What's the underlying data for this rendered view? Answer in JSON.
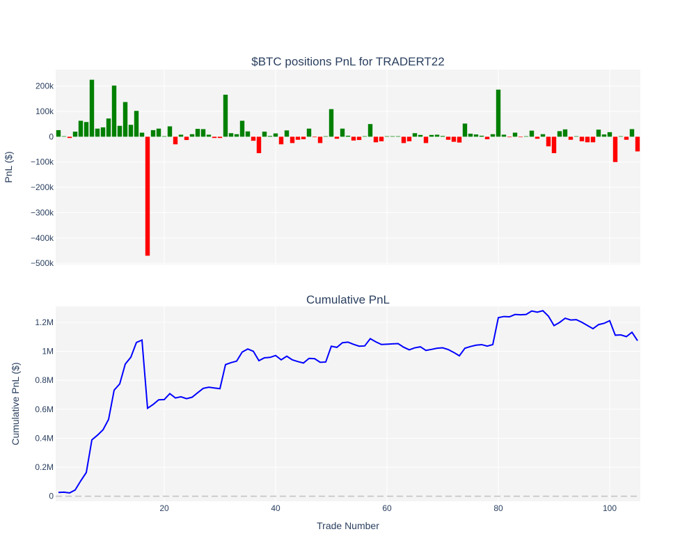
{
  "chart_data": [
    {
      "type": "bar",
      "title": "$BTC positions PnL for TRADERT22",
      "xlabel": "",
      "ylabel": "PnL ($)",
      "ylim": [
        -505000,
        265000
      ],
      "xlim": [
        0.5,
        105.5
      ],
      "y_ticks": [
        200000,
        100000,
        0,
        -100000,
        -200000,
        -300000,
        -400000,
        -500000
      ],
      "y_tick_labels": [
        "200k",
        "100k",
        "0",
        "−100k",
        "−200k",
        "−300k",
        "−400k",
        "−500k"
      ],
      "positive_color": "#008000",
      "negative_color": "#ff0000",
      "grid": true,
      "x": [
        1,
        2,
        3,
        4,
        5,
        6,
        7,
        8,
        9,
        10,
        11,
        12,
        13,
        14,
        15,
        16,
        17,
        18,
        19,
        20,
        21,
        22,
        23,
        24,
        25,
        26,
        27,
        28,
        29,
        30,
        31,
        32,
        33,
        34,
        35,
        36,
        37,
        38,
        39,
        40,
        41,
        42,
        43,
        44,
        45,
        46,
        47,
        48,
        49,
        50,
        51,
        52,
        53,
        54,
        55,
        56,
        57,
        58,
        59,
        60,
        61,
        62,
        63,
        64,
        65,
        66,
        67,
        68,
        69,
        70,
        71,
        72,
        73,
        74,
        75,
        76,
        77,
        78,
        79,
        80,
        81,
        82,
        83,
        84,
        85,
        86,
        87,
        88,
        89,
        90,
        91,
        92,
        93,
        94,
        95,
        96,
        97,
        98,
        99,
        100,
        101,
        102,
        103,
        104,
        105
      ],
      "values": [
        26000,
        2000,
        -5000,
        20000,
        63000,
        58000,
        225000,
        32000,
        37000,
        72000,
        202000,
        43000,
        137000,
        47000,
        102000,
        16000,
        -470000,
        26000,
        32000,
        2000,
        41000,
        -30000,
        8000,
        -13000,
        10000,
        31000,
        30000,
        8000,
        -5000,
        -5000,
        166000,
        14000,
        10000,
        63000,
        21000,
        -16000,
        -65000,
        20000,
        3000,
        13000,
        -30000,
        25000,
        -25000,
        -12000,
        -10000,
        32000,
        -2000,
        -25000,
        2000,
        109000,
        -8000,
        32000,
        4000,
        -15000,
        -13000,
        2000,
        50000,
        -22000,
        -18000,
        2000,
        2000,
        2000,
        -25000,
        -18000,
        14000,
        7000,
        -25000,
        7000,
        8000,
        3000,
        -12000,
        -20000,
        -23000,
        52000,
        12000,
        9000,
        4000,
        -10000,
        10000,
        186000,
        8000,
        -2000,
        16000,
        -2000,
        2000,
        24000,
        -8000,
        10000,
        -38000,
        -65000,
        22000,
        29000,
        -12000,
        2000,
        -18000,
        -22000,
        -22000,
        28000,
        9000,
        18000,
        -100000,
        2000,
        -12000,
        30000,
        -58000
      ]
    },
    {
      "type": "line",
      "title": "Cumulative PnL",
      "xlabel": "Trade Number",
      "ylabel": "Cumulative PnL ($)",
      "ylim": [
        -35000,
        1310000
      ],
      "xlim": [
        0.5,
        105.5
      ],
      "x_ticks": [
        20,
        40,
        60,
        80,
        100
      ],
      "y_ticks": [
        0,
        200000,
        400000,
        600000,
        800000,
        1000000,
        1200000
      ],
      "y_tick_labels": [
        "0",
        "0.2M",
        "0.4M",
        "0.6M",
        "0.8M",
        "1M",
        "1.2M"
      ],
      "line_color": "#0000ff",
      "zero_line_color": "#cccccc",
      "grid": true,
      "x": [
        1,
        2,
        3,
        4,
        5,
        6,
        7,
        8,
        9,
        10,
        11,
        12,
        13,
        14,
        15,
        16,
        17,
        18,
        19,
        20,
        21,
        22,
        23,
        24,
        25,
        26,
        27,
        28,
        29,
        30,
        31,
        32,
        33,
        34,
        35,
        36,
        37,
        38,
        39,
        40,
        41,
        42,
        43,
        44,
        45,
        46,
        47,
        48,
        49,
        50,
        51,
        52,
        53,
        54,
        55,
        56,
        57,
        58,
        59,
        60,
        61,
        62,
        63,
        64,
        65,
        66,
        67,
        68,
        69,
        70,
        71,
        72,
        73,
        74,
        75,
        76,
        77,
        78,
        79,
        80,
        81,
        82,
        83,
        84,
        85,
        86,
        87,
        88,
        89,
        90,
        91,
        92,
        93,
        94,
        95,
        96,
        97,
        98,
        99,
        100,
        101,
        102,
        103,
        104,
        105
      ],
      "values": [
        26000,
        28000,
        23000,
        43000,
        106000,
        164000,
        389000,
        421000,
        458000,
        530000,
        732000,
        775000,
        912000,
        959000,
        1061000,
        1077000,
        607000,
        633000,
        665000,
        667000,
        708000,
        678000,
        686000,
        673000,
        683000,
        714000,
        744000,
        752000,
        747000,
        742000,
        908000,
        922000,
        932000,
        995000,
        1016000,
        1000000,
        935000,
        955000,
        958000,
        971000,
        941000,
        966000,
        941000,
        929000,
        919000,
        951000,
        949000,
        924000,
        926000,
        1035000,
        1027000,
        1059000,
        1063000,
        1048000,
        1035000,
        1037000,
        1087000,
        1065000,
        1047000,
        1049000,
        1051000,
        1053000,
        1028000,
        1010000,
        1024000,
        1031000,
        1006000,
        1013000,
        1021000,
        1024000,
        1012000,
        992000,
        969000,
        1021000,
        1033000,
        1042000,
        1046000,
        1036000,
        1046000,
        1232000,
        1240000,
        1238000,
        1254000,
        1252000,
        1254000,
        1278000,
        1270000,
        1280000,
        1242000,
        1177000,
        1199000,
        1228000,
        1216000,
        1218000,
        1200000,
        1178000,
        1156000,
        1184000,
        1193000,
        1211000,
        1111000,
        1113000,
        1101000,
        1131000,
        1073000
      ]
    }
  ]
}
